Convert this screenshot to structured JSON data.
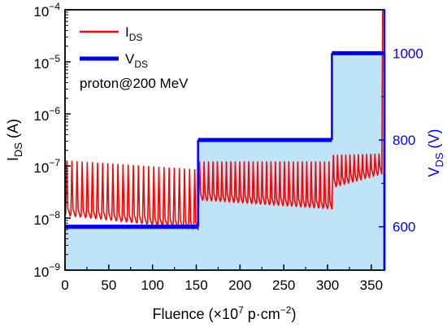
{
  "chart_data": {
    "type": "line",
    "xlabel": "Fluence (×10⁷ p·cm⁻²)",
    "ylabel_left": "I_DS (A)",
    "ylabel_right": "V_DS (V)",
    "xlim": [
      0,
      365
    ],
    "ylim_left": [
      1e-09,
      0.0001
    ],
    "ylim_right": [
      500,
      1100
    ],
    "yscale_left": "log",
    "x_ticks": [
      0,
      50,
      100,
      150,
      200,
      250,
      300,
      350
    ],
    "x_tick_labels": [
      "0",
      "50",
      "100",
      "150",
      "200",
      "250",
      "300",
      "350"
    ],
    "y_left_tick_labels": [
      {
        "mant": "10",
        "exp": "−9"
      },
      {
        "mant": "10",
        "exp": "−8"
      },
      {
        "mant": "10",
        "exp": "−7"
      },
      {
        "mant": "10",
        "exp": "−6"
      },
      {
        "mant": "10",
        "exp": "−5"
      },
      {
        "mant": "10",
        "exp": "−4"
      }
    ],
    "y_right_ticks": [
      600,
      800,
      1000
    ],
    "y_right_tick_labels": [
      "600",
      "800",
      "1000"
    ],
    "annotation": "proton@200 MeV",
    "legend": {
      "position": "top-left",
      "entries": [
        {
          "name": "I",
          "sub": "DS",
          "color": "#ff0000"
        },
        {
          "name": "V",
          "sub": "DS",
          "color": "#0000ff"
        }
      ]
    },
    "series": [
      {
        "name": "I_DS",
        "axis": "left",
        "color": "#ff0000",
        "segments": [
          {
            "x_start": 0,
            "x_end": 152,
            "base": 1.1e-08,
            "peak": 1.25e-07,
            "base_end": 6e-09,
            "peak_end": 8.5e-08,
            "spikes": 26
          },
          {
            "x_start": 152,
            "x_end": 305,
            "base": 2.2e-08,
            "peak": 1.2e-07,
            "base_end": 1.5e-08,
            "peak_end": 1.2e-07,
            "spikes": 30
          },
          {
            "x_start": 305,
            "x_end": 362,
            "base": 4e-08,
            "peak": 1.6e-07,
            "base_end": 7e-08,
            "peak_end": 1.7e-07,
            "spikes": 12
          }
        ],
        "final_spike": {
          "x": 363,
          "value": 0.0001
        }
      },
      {
        "name": "V_DS",
        "axis": "right",
        "color": "#0000ff",
        "fill": "#bfe3f7",
        "steps": [
          {
            "x_start": 0,
            "x_end": 152,
            "value": 600
          },
          {
            "x_start": 152,
            "x_end": 305,
            "value": 800
          },
          {
            "x_start": 305,
            "x_end": 365,
            "value": 1000
          }
        ],
        "step_ends": [
          {
            "x": 152,
            "value": 800
          },
          {
            "x": 305,
            "value": 1000
          },
          {
            "x": 365,
            "value": 500
          }
        ]
      }
    ]
  },
  "colors": {
    "axis_left": "#000000",
    "axis_right": "#0000ff",
    "current": "#ff0000",
    "voltage": "#0000ff",
    "fill": "#bfe3f7"
  }
}
